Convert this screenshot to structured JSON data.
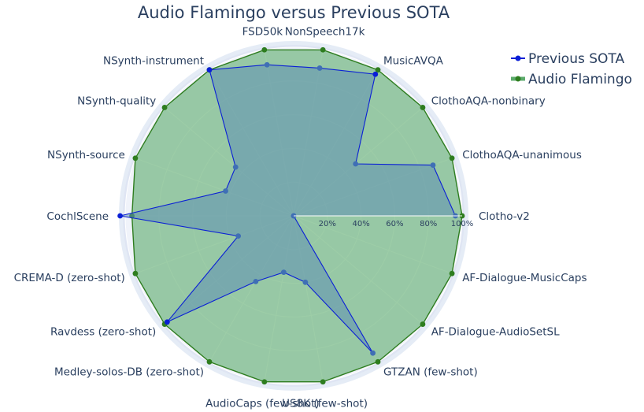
{
  "chart_data": {
    "type": "radar",
    "title": "Audio Flamingo versus Previous SOTA",
    "categories": [
      "Clotho-v2",
      "ClothoAQA-unanimous",
      "ClothoAQA-nonbinary",
      "MusicAVQA",
      "NonSpeech17k",
      "FSD50k",
      "NSynth-instrument",
      "NSynth-quality",
      "NSynth-source",
      "CochlScene",
      "CREMA-D (zero-shot)",
      "Ravdess (zero-shot)",
      "Medley-solos-DB (zero-shot)",
      "AudioCaps (few-shot)",
      "US8K (few-shot)",
      "GTZAN (few-shot)",
      "AF-Dialogue-AudioSetSL",
      "AF-Dialogue-MusicCaps"
    ],
    "radial_ticks": [
      "20%",
      "40%",
      "60%",
      "80%",
      "100%"
    ],
    "radial_range": [
      0,
      100
    ],
    "series": [
      {
        "name": "Previous SOTA",
        "color": "#0a1fd6",
        "fill": "#5f8fb5",
        "values": [
          96,
          88,
          48,
          97,
          89,
          91,
          100,
          45,
          43,
          103,
          35,
          98,
          45,
          34,
          40,
          94,
          0,
          0
        ]
      },
      {
        "name": "Audio Flamingo",
        "color": "#2e7d1f",
        "fill": "#5cab6c",
        "values": [
          100,
          100,
          100,
          100,
          100,
          100,
          100,
          100,
          100,
          96,
          100,
          100,
          100,
          100,
          100,
          100,
          100,
          100
        ]
      }
    ],
    "legend_position": "top-right"
  }
}
